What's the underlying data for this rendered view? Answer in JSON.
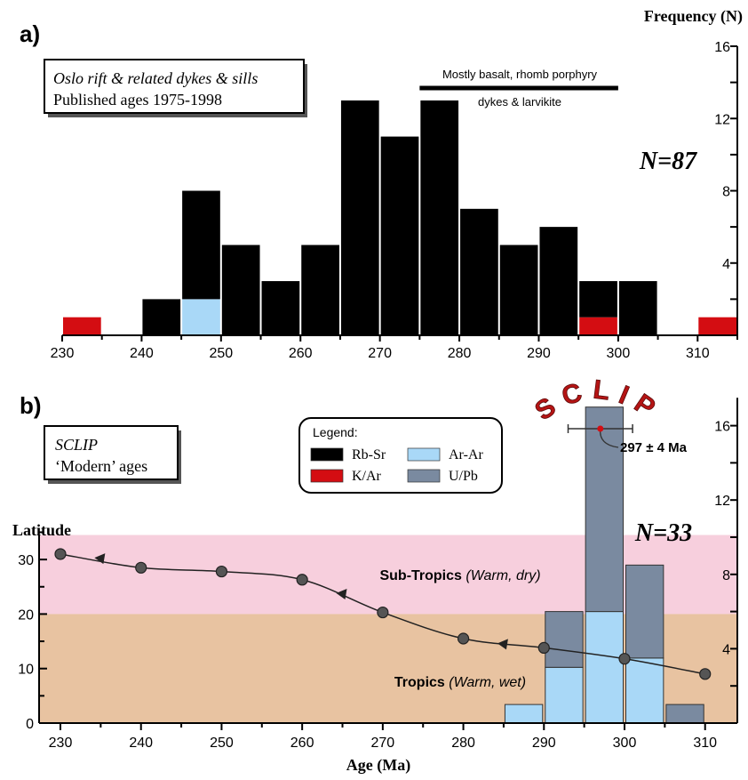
{
  "chart_data": [
    {
      "type": "bar",
      "panel_label": "a)",
      "box_line1": "Oslo rift & related dykes & sills",
      "box_line2": "Published ages 1975-1998",
      "annotation_line1": "Mostly basalt, rhomb porphyry",
      "annotation_line2": "dykes & larvikite",
      "n_label": "N=87",
      "ylabel": "Frequency (N)",
      "xlim": [
        230,
        315
      ],
      "ylim": [
        0,
        16
      ],
      "bin_width": 5,
      "x_ticks": [
        230,
        240,
        250,
        260,
        270,
        280,
        290,
        300,
        310
      ],
      "y_ticks": [
        4,
        8,
        12,
        16
      ],
      "bins": [
        {
          "start": 230,
          "rbsr": 0,
          "kar": 1,
          "arar": 0
        },
        {
          "start": 240,
          "rbsr": 2,
          "kar": 0,
          "arar": 0
        },
        {
          "start": 245,
          "rbsr": 6,
          "kar": 0,
          "arar": 2
        },
        {
          "start": 250,
          "rbsr": 5,
          "kar": 0,
          "arar": 0
        },
        {
          "start": 255,
          "rbsr": 3,
          "kar": 0,
          "arar": 0
        },
        {
          "start": 260,
          "rbsr": 5,
          "kar": 0,
          "arar": 0
        },
        {
          "start": 265,
          "rbsr": 13,
          "kar": 0,
          "arar": 0
        },
        {
          "start": 270,
          "rbsr": 11,
          "kar": 0,
          "arar": 0
        },
        {
          "start": 275,
          "rbsr": 13,
          "kar": 0,
          "arar": 0
        },
        {
          "start": 280,
          "rbsr": 7,
          "kar": 0,
          "arar": 0
        },
        {
          "start": 285,
          "rbsr": 5,
          "kar": 0,
          "arar": 0
        },
        {
          "start": 290,
          "rbsr": 6,
          "kar": 0,
          "arar": 0
        },
        {
          "start": 295,
          "rbsr": 2,
          "kar": 1,
          "arar": 0
        },
        {
          "start": 300,
          "rbsr": 3,
          "kar": 0,
          "arar": 0
        },
        {
          "start": 310,
          "rbsr": 0,
          "kar": 1,
          "arar": 0
        }
      ],
      "annotation_bar_x": [
        275,
        300
      ]
    },
    {
      "type": "bar",
      "panel_label": "b)",
      "box_line1": "SCLIP",
      "box_line2": "‘Modern’ ages",
      "legend_title": "Legend:",
      "legend": [
        {
          "label": "Rb-Sr",
          "color": "#000000"
        },
        {
          "label": "K/Ar",
          "color": "#d40d12"
        },
        {
          "label": "Ar-Ar",
          "color": "#a9d8f7"
        },
        {
          "label": "U/Pb",
          "color": "#7a8aa0"
        }
      ],
      "sclip_title": "SCLIP",
      "sclip_age": "297 ± 4 Ma",
      "sclip_age_value": 297,
      "sclip_age_err": 4,
      "n_label": "N=33",
      "xlabel": "Age (Ma)",
      "ylabel_left": "Latitude",
      "xlim": [
        230,
        314
      ],
      "left_ylim": [
        0,
        38
      ],
      "left_yticks": [
        0,
        10,
        20,
        30
      ],
      "right_ylim": [
        0,
        17.5
      ],
      "right_yticks": [
        4,
        8,
        12,
        16
      ],
      "x_ticks": [
        230,
        240,
        250,
        260,
        270,
        280,
        290,
        300,
        310
      ],
      "zones": [
        {
          "name": "Sub-Tropics",
          "desc": "(Warm, dry)",
          "lat_from": 20,
          "lat_to": 34.5,
          "color": "#f7cfdd"
        },
        {
          "name": "Tropics",
          "desc": "(Warm, wet)",
          "lat_from": 0,
          "lat_to": 20,
          "color": "#e8c3a1"
        }
      ],
      "bins": [
        {
          "start": 285,
          "arar": 1,
          "upb": 0
        },
        {
          "start": 290,
          "arar": 3,
          "upb": 3
        },
        {
          "start": 295,
          "arar": 6,
          "upb": 11
        },
        {
          "start": 300,
          "arar": 3.5,
          "upb": 5
        },
        {
          "start": 305,
          "arar": 0,
          "upb": 1
        }
      ],
      "latitude_path": {
        "points": [
          {
            "age": 230,
            "lat": 31
          },
          {
            "age": 240,
            "lat": 28.5
          },
          {
            "age": 250,
            "lat": 27.8
          },
          {
            "age": 260,
            "lat": 26.3
          },
          {
            "age": 270,
            "lat": 20.3
          },
          {
            "age": 280,
            "lat": 15.5
          },
          {
            "age": 290,
            "lat": 13.8
          },
          {
            "age": 300,
            "lat": 11.8
          },
          {
            "age": 310,
            "lat": 9
          }
        ],
        "arrows": [
          {
            "age": 235,
            "lat": 30
          },
          {
            "age": 265,
            "lat": 23.5
          },
          {
            "age": 285,
            "lat": 14.3
          }
        ]
      }
    }
  ]
}
